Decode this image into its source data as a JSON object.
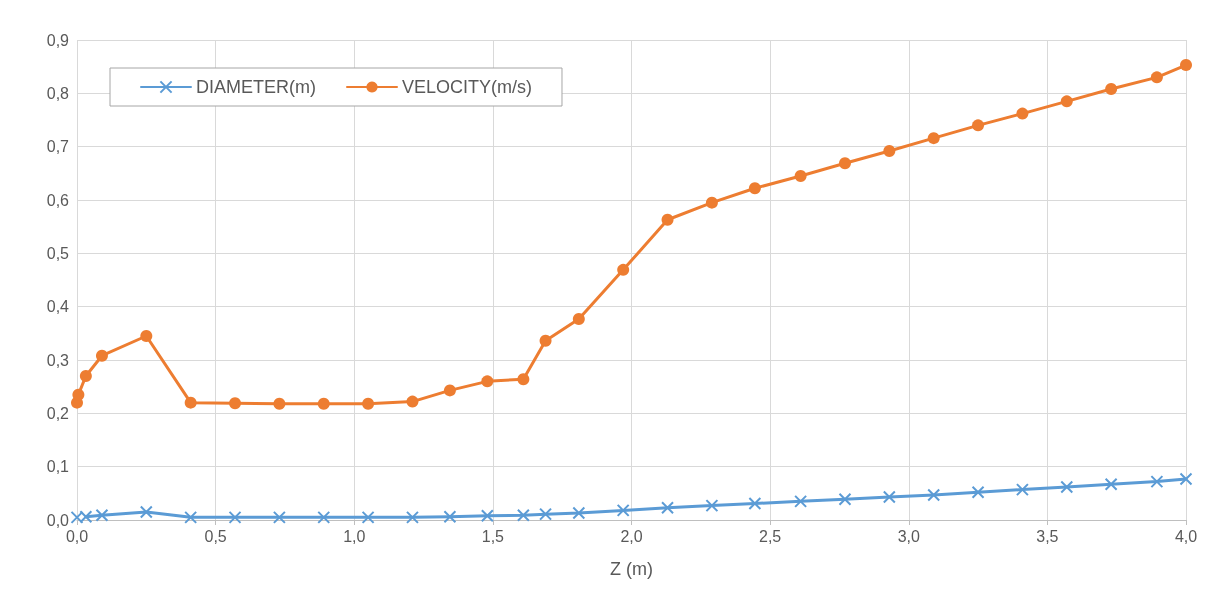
{
  "chart_data": {
    "type": "line",
    "xlabel": "Z (m)",
    "x": [
      0,
      0.005,
      0.032,
      0.09,
      0.25,
      0.41,
      0.57,
      0.73,
      0.89,
      1.05,
      1.21,
      1.345,
      1.48,
      1.61,
      1.69,
      1.81,
      1.97,
      2.13,
      2.29,
      2.445,
      2.61,
      2.77,
      2.93,
      3.09,
      3.25,
      3.41,
      3.57,
      3.73,
      3.895,
      4.0
    ],
    "series": [
      {
        "name": "DIAMETER(m)",
        "color": "#5b9bd5",
        "marker": "cross",
        "values": [
          0.005,
          null,
          0.006,
          0.009,
          0.015,
          0.005,
          0.005,
          0.005,
          0.005,
          0.005,
          0.005,
          0.006,
          0.008,
          0.009,
          0.011,
          0.013,
          0.018,
          0.023,
          0.027,
          0.031,
          0.035,
          0.039,
          0.043,
          0.047,
          0.052,
          0.057,
          0.062,
          0.067,
          0.072,
          0.077
        ]
      },
      {
        "name": "VELOCITY(m/s)",
        "color": "#ed7d31",
        "marker": "circle",
        "values": [
          0.22,
          0.235,
          0.27,
          0.308,
          0.345,
          0.22,
          0.219,
          0.218,
          0.218,
          0.218,
          0.222,
          0.243,
          0.26,
          0.264,
          0.336,
          0.377,
          0.469,
          0.563,
          0.595,
          0.622,
          0.645,
          0.669,
          0.692,
          0.716,
          0.74,
          0.762,
          0.785,
          0.808,
          0.83,
          0.853
        ]
      }
    ],
    "xlim": [
      0,
      4
    ],
    "xticks": [
      {
        "value": 0,
        "label": "0,0"
      },
      {
        "value": 0.5,
        "label": "0,5"
      },
      {
        "value": 1,
        "label": "1,0"
      },
      {
        "value": 1.5,
        "label": "1,5"
      },
      {
        "value": 2,
        "label": "2,0"
      },
      {
        "value": 2.5,
        "label": "2,5"
      },
      {
        "value": 3,
        "label": "3,0"
      },
      {
        "value": 3.5,
        "label": "3,5"
      },
      {
        "value": 4,
        "label": "4,0"
      }
    ],
    "ylim": [
      0,
      0.9
    ],
    "yticks": [
      {
        "value": 0,
        "label": "0,0"
      },
      {
        "value": 0.1,
        "label": "0,1"
      },
      {
        "value": 0.2,
        "label": "0,2"
      },
      {
        "value": 0.3,
        "label": "0,3"
      },
      {
        "value": 0.4,
        "label": "0,4"
      },
      {
        "value": 0.5,
        "label": "0,5"
      },
      {
        "value": 0.6,
        "label": "0,6"
      },
      {
        "value": 0.7,
        "label": "0,7"
      },
      {
        "value": 0.8,
        "label": "0,8"
      },
      {
        "value": 0.9,
        "label": "0,9"
      }
    ],
    "grid": true,
    "legend": "top left",
    "line_style": "solid"
  }
}
